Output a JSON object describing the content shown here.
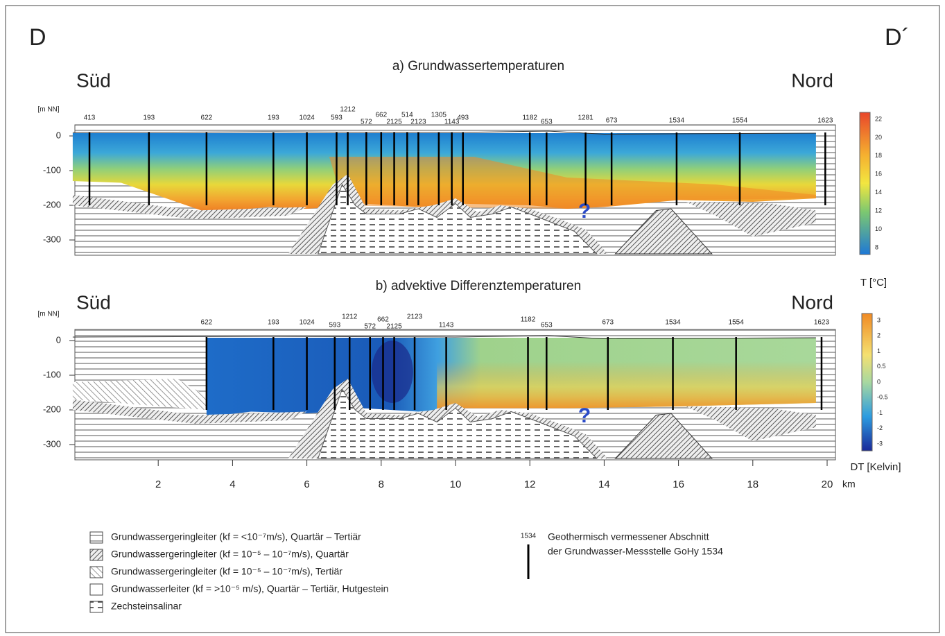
{
  "corner_labels": {
    "left": "D",
    "right": "D´"
  },
  "panels": [
    {
      "title": "a) Grundwassertemperaturen",
      "left": "Süd",
      "right": "Nord",
      "y_unit": "[m NN]",
      "yticks": [
        "0",
        "-100",
        "-200",
        "-300"
      ],
      "wells": [
        "413",
        "193",
        "622",
        "193",
        "1024",
        "593",
        "1212",
        "572",
        "662",
        "2125",
        "514",
        "2123",
        "1305",
        "1143",
        "493",
        "1182",
        "653",
        "1281",
        "673",
        "1534",
        "1554",
        "1623"
      ],
      "annotation": "?"
    },
    {
      "title": "b) advektive Differenztemperaturen",
      "left": "Süd",
      "right": "Nord",
      "y_unit": "[m NN]",
      "yticks": [
        "0",
        "-100",
        "-200",
        "-300"
      ],
      "wells": [
        "622",
        "193",
        "1024",
        "593",
        "1212",
        "572",
        "662",
        "2125",
        "2123",
        "1143",
        "1182",
        "653",
        "673",
        "1534",
        "1554",
        "1623"
      ],
      "annotation": "?"
    }
  ],
  "x_axis": {
    "ticks": [
      "2",
      "4",
      "6",
      "8",
      "10",
      "12",
      "14",
      "16",
      "18",
      "20"
    ],
    "unit": "km"
  },
  "colorbars": [
    {
      "title": "T [°C]",
      "ticks": [
        "22",
        "20",
        "18",
        "16",
        "14",
        "12",
        "10",
        "8"
      ]
    },
    {
      "title": "DT [Kelvin]",
      "ticks": [
        "3",
        "2",
        "1",
        "0.5",
        "0",
        "-0.5",
        "-1",
        "-2",
        "-3"
      ]
    }
  ],
  "legend": [
    "Grundwassergeringleiter (kf = <10⁻⁷m/s), Quartär – Tertiär",
    "Grundwassergeringleiter (kf = 10⁻⁵ – 10⁻⁷m/s), Quartär",
    "Grundwassergeringleiter (kf = 10⁻⁵ – 10⁻⁷m/s), Tertiär",
    "Grundwasserleiter (kf = >10⁻⁵ m/s), Quartär – Tertiär, Hutgestein",
    "Zechsteinsalinar"
  ],
  "well_note": {
    "number": "1534",
    "lines": [
      "Geothermisch vermessener Abschnitt",
      "der Grundwasser-Messstelle GoHy 1534"
    ]
  }
}
